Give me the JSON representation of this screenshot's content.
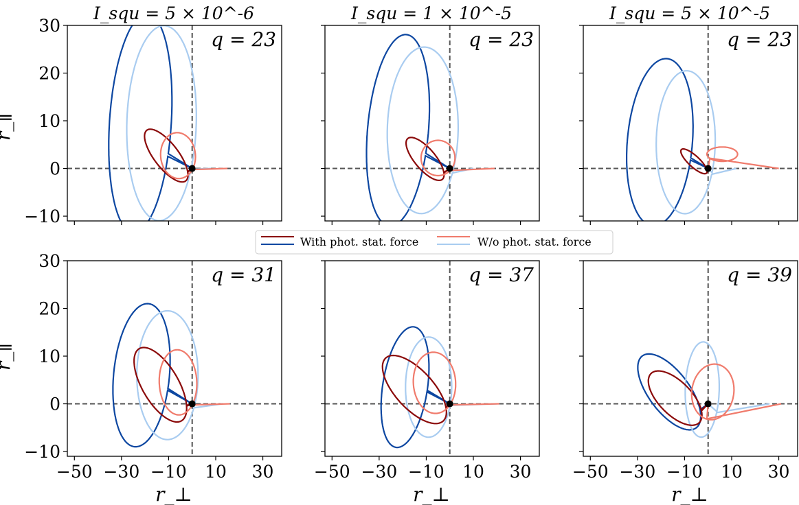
{
  "legend": {
    "with_label": "With phot. stat. force",
    "without_label": "W/o phot. stat. force"
  },
  "colors": {
    "with_dark_red": "#8b0a0a",
    "with_dark_blue": "#0d47a1",
    "without_light_red": "#f07b6c",
    "without_light_blue": "#a9ccf0"
  },
  "chart_data": [
    {
      "type": "line",
      "title": "I_squ = 5 × 10^-6",
      "annotation": "q = 23",
      "xlabel": "",
      "ylabel": "r_∥",
      "xlim": [
        -53,
        38
      ],
      "ylim": [
        -11,
        30
      ],
      "xticks": [
        -50,
        -30,
        -10,
        10,
        30
      ],
      "yticks": [
        -10,
        0,
        10,
        20,
        30
      ],
      "series": [
        {
          "group": "with",
          "color": "#0d47a1",
          "ellipse": {
            "cx": -22,
            "cy": 9.5,
            "a": 23.2,
            "b": 13.0,
            "rot": 80
          }
        },
        {
          "group": "without",
          "color": "#a9ccf0",
          "ellipse": {
            "cx": -13,
            "cy": 9.5,
            "a": 20.5,
            "b": 14.7,
            "rot": 84
          },
          "cut": [
            8,
            0
          ]
        },
        {
          "group": "with",
          "color": "#8b0a0a",
          "ellipse": {
            "cx": -11,
            "cy": 2.7,
            "a": 10.2,
            "b": 3.4,
            "rot": -27
          }
        },
        {
          "group": "without",
          "color": "#f07b6c",
          "ellipse": {
            "cx": -6,
            "cy": 2.7,
            "a": 7.4,
            "b": 4.8,
            "rot": -3
          },
          "cut": [
            15,
            0
          ]
        }
      ]
    },
    {
      "type": "line",
      "title": "I_squ = 1 × 10^-5",
      "annotation": "q = 23",
      "xlabel": "",
      "ylabel": "",
      "xlim": [
        -53,
        38
      ],
      "ylim": [
        -11,
        30
      ],
      "xticks": [
        -50,
        -30,
        -10,
        10,
        30
      ],
      "yticks": [
        -10,
        0,
        10,
        20,
        30
      ],
      "series": [
        {
          "group": "with",
          "color": "#0d47a1",
          "ellipse": {
            "cx": -22,
            "cy": 8,
            "a": 20.5,
            "b": 12.7,
            "rot": 75
          }
        },
        {
          "group": "without",
          "color": "#a9ccf0",
          "ellipse": {
            "cx": -11.5,
            "cy": 8,
            "a": 17.5,
            "b": 15,
            "rot": 82
          },
          "cut": [
            10,
            0
          ]
        },
        {
          "group": "with",
          "color": "#8b0a0a",
          "ellipse": {
            "cx": -10.5,
            "cy": 2,
            "a": 8.8,
            "b": 2.8,
            "rot": -25
          }
        },
        {
          "group": "without",
          "color": "#f07b6c",
          "ellipse": {
            "cx": -5,
            "cy": 2.2,
            "a": 7.2,
            "b": 3.7,
            "rot": 0
          },
          "cut": [
            19,
            0
          ]
        }
      ]
    },
    {
      "type": "line",
      "title": "I_squ = 5 × 10^-5",
      "annotation": "q = 23",
      "xlabel": "",
      "ylabel": "",
      "xlim": [
        -53,
        38
      ],
      "ylim": [
        -11,
        30
      ],
      "xticks": [
        -50,
        -30,
        -10,
        10,
        30
      ],
      "yticks": [
        -10,
        0,
        10,
        20,
        30
      ],
      "series": [
        {
          "group": "with",
          "color": "#0d47a1",
          "ellipse": {
            "cx": -20.5,
            "cy": 5.5,
            "a": 18,
            "b": 13.5,
            "rot": 70
          }
        },
        {
          "group": "without",
          "color": "#a9ccf0",
          "ellipse": {
            "cx": -9.5,
            "cy": 5.5,
            "a": 15,
            "b": 12.5,
            "rot": 85
          },
          "cut": [
            12,
            0
          ]
        },
        {
          "group": "with",
          "color": "#8b0a0a",
          "ellipse": {
            "cx": -6,
            "cy": 1.5,
            "a": 6,
            "b": 1.4,
            "rot": -22
          }
        },
        {
          "group": "without",
          "color": "#f07b6c",
          "ellipse": {
            "cx": 6,
            "cy": 3,
            "a": 6.5,
            "b": 1.5,
            "rot": 0
          },
          "cut": [
            30,
            0
          ],
          "tail_line": true
        }
      ]
    },
    {
      "type": "line",
      "title": "",
      "annotation": "q = 31",
      "xlabel": "r_⊥",
      "ylabel": "r_∥",
      "xlim": [
        -53,
        38
      ],
      "ylim": [
        -11,
        30
      ],
      "xticks": [
        -50,
        -30,
        -10,
        10,
        30
      ],
      "yticks": [
        -10,
        0,
        10,
        20,
        30
      ],
      "series": [
        {
          "group": "with",
          "color": "#0d47a1",
          "ellipse": {
            "cx": -21.5,
            "cy": 6,
            "a": 15.5,
            "b": 11.5,
            "rot": 68
          }
        },
        {
          "group": "without",
          "color": "#a9ccf0",
          "ellipse": {
            "cx": -10.5,
            "cy": 6,
            "a": 13.5,
            "b": 13,
            "rot": 88
          },
          "cut": [
            13,
            0
          ]
        },
        {
          "group": "with",
          "color": "#8b0a0a",
          "ellipse": {
            "cx": -13.5,
            "cy": 4,
            "a": 12.5,
            "b": 5.4,
            "rot": -30
          }
        },
        {
          "group": "without",
          "color": "#f07b6c",
          "ellipse": {
            "cx": -6,
            "cy": 4.5,
            "a": 8,
            "b": 6.8,
            "rot": -8
          },
          "cut": [
            16,
            0
          ]
        }
      ]
    },
    {
      "type": "line",
      "title": "",
      "annotation": "q = 37",
      "xlabel": "r_⊥",
      "ylabel": "",
      "xlim": [
        -53,
        38
      ],
      "ylim": [
        -11,
        30
      ],
      "xticks": [
        -50,
        -30,
        -10,
        10,
        30
      ],
      "yticks": [
        -10,
        0,
        10,
        20,
        30
      ],
      "series": [
        {
          "group": "with",
          "color": "#0d47a1",
          "ellipse": {
            "cx": -19,
            "cy": 3.5,
            "a": 13.5,
            "b": 9,
            "rot": 62
          }
        },
        {
          "group": "without",
          "color": "#a9ccf0",
          "ellipse": {
            "cx": -9,
            "cy": 3.5,
            "a": 10.5,
            "b": 9.8,
            "rot": 88
          },
          "cut": [
            20,
            0
          ]
        },
        {
          "group": "with",
          "color": "#8b0a0a",
          "ellipse": {
            "cx": -15,
            "cy": 3,
            "a": 14.5,
            "b": 5,
            "rot": -22
          }
        },
        {
          "group": "without",
          "color": "#f07b6c",
          "ellipse": {
            "cx": -6.5,
            "cy": 4.4,
            "a": 9,
            "b": 6.4,
            "rot": -4
          },
          "cut": [
            21,
            0
          ]
        }
      ]
    },
    {
      "type": "line",
      "title": "",
      "annotation": "q = 39",
      "xlabel": "r_⊥",
      "ylabel": "",
      "xlim": [
        -53,
        38
      ],
      "ylim": [
        -11,
        30
      ],
      "xticks": [
        -50,
        -30,
        -10,
        10,
        30
      ],
      "yticks": [
        -10,
        0,
        10,
        20,
        30
      ],
      "series": [
        {
          "group": "with",
          "color": "#0d47a1",
          "ellipse": {
            "cx": -16.5,
            "cy": 2.5,
            "a": 14.5,
            "b": 5.6,
            "rot": -25
          }
        },
        {
          "group": "without",
          "color": "#a9ccf0",
          "ellipse": {
            "cx": -2.5,
            "cy": 3,
            "a": 10,
            "b": 7.2,
            "rot": 85
          },
          "cut": [
            26,
            0
          ]
        },
        {
          "group": "with",
          "color": "#8b0a0a",
          "ellipse": {
            "cx": -14,
            "cy": 1.2,
            "a": 12,
            "b": 4.2,
            "rot": -20
          }
        },
        {
          "group": "without",
          "color": "#f07b6c",
          "ellipse": {
            "cx": 2,
            "cy": 2.5,
            "a": 9,
            "b": 5.8,
            "rot": 5
          },
          "cut": [
            31,
            0
          ]
        }
      ]
    }
  ]
}
